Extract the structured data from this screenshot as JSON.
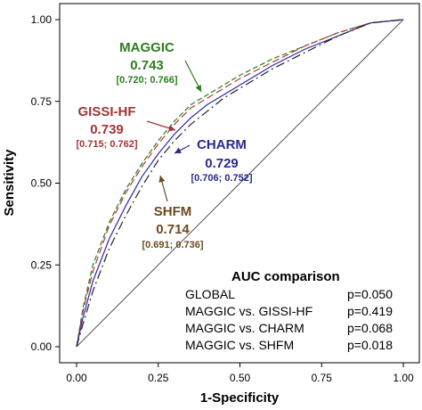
{
  "chart_data": {
    "type": "line",
    "xlabel": "1-Specificity",
    "ylabel": "Sensitivity",
    "xlim": [
      0,
      1
    ],
    "ylim": [
      0,
      1
    ],
    "x_ticks": [
      "0.00",
      "0.25",
      "0.50",
      "0.75",
      "1.00"
    ],
    "y_ticks": [
      "0.00",
      "0.25",
      "0.50",
      "0.75",
      "1.00"
    ],
    "grid": false,
    "reference_line": {
      "from": [
        0,
        0
      ],
      "to": [
        1,
        1
      ],
      "color": "#555555"
    },
    "series": [
      {
        "name": "MAGGIC",
        "color": "#2e7d1e",
        "dash": "6,3",
        "auc": "0.743",
        "ci": "[0.720; 0.766]",
        "x": [
          0,
          0.02,
          0.05,
          0.1,
          0.15,
          0.2,
          0.25,
          0.3,
          0.35,
          0.4,
          0.45,
          0.5,
          0.6,
          0.7,
          0.8,
          0.9,
          1.0
        ],
        "y": [
          0,
          0.12,
          0.25,
          0.38,
          0.48,
          0.56,
          0.63,
          0.69,
          0.74,
          0.77,
          0.8,
          0.83,
          0.88,
          0.92,
          0.96,
          0.99,
          1.0
        ]
      },
      {
        "name": "GISSI-HF",
        "color": "#b03a3a",
        "dash": "8,4",
        "auc": "0.739",
        "ci": "[0.715; 0.762]",
        "x": [
          0,
          0.02,
          0.05,
          0.1,
          0.15,
          0.2,
          0.25,
          0.3,
          0.35,
          0.4,
          0.45,
          0.5,
          0.6,
          0.7,
          0.8,
          0.9,
          1.0
        ],
        "y": [
          0,
          0.11,
          0.23,
          0.37,
          0.47,
          0.55,
          0.62,
          0.68,
          0.73,
          0.76,
          0.79,
          0.82,
          0.87,
          0.92,
          0.96,
          0.99,
          1.0
        ]
      },
      {
        "name": "CHARM",
        "color": "#2a2aa8",
        "dash": "",
        "auc": "0.729",
        "ci": "[0.706; 0.752]",
        "x": [
          0,
          0.02,
          0.05,
          0.1,
          0.15,
          0.2,
          0.25,
          0.3,
          0.35,
          0.4,
          0.45,
          0.5,
          0.6,
          0.7,
          0.8,
          0.9,
          1.0
        ],
        "y": [
          0,
          0.09,
          0.2,
          0.33,
          0.43,
          0.52,
          0.59,
          0.65,
          0.7,
          0.74,
          0.77,
          0.8,
          0.86,
          0.91,
          0.95,
          0.99,
          1.0
        ]
      },
      {
        "name": "SHFM",
        "color": "#222222",
        "dash": "10,4,2,4",
        "auc": "0.714",
        "ci": "[0.691; 0.736]",
        "x": [
          0,
          0.02,
          0.05,
          0.1,
          0.15,
          0.2,
          0.25,
          0.3,
          0.35,
          0.4,
          0.45,
          0.5,
          0.6,
          0.7,
          0.8,
          0.9,
          1.0
        ],
        "y": [
          0,
          0.07,
          0.17,
          0.3,
          0.4,
          0.49,
          0.57,
          0.63,
          0.68,
          0.72,
          0.76,
          0.79,
          0.85,
          0.9,
          0.95,
          0.99,
          1.0
        ]
      }
    ]
  },
  "annotations": {
    "maggic": {
      "name": "MAGGIC",
      "auc": "0.743",
      "ci": "[0.720; 0.766]",
      "color": "#2e7d1e"
    },
    "gissi": {
      "name": "GISSI-HF",
      "auc": "0.739",
      "ci": "[0.715; 0.762]",
      "color": "#a03535"
    },
    "charm": {
      "name": "CHARM",
      "auc": "0.729",
      "ci": "[0.706; 0.752]",
      "color": "#2a2a8a"
    },
    "shfm": {
      "name": "SHFM",
      "auc": "0.714",
      "ci": "[0.691; 0.736]",
      "color": "#6b4a1e"
    }
  },
  "auc_comparison": {
    "title": "AUC comparison",
    "rows": [
      {
        "label": "GLOBAL",
        "p": "p=0.050"
      },
      {
        "label": "MAGGIC vs. GISSI-HF",
        "p": "p=0.419"
      },
      {
        "label": "MAGGIC vs. CHARM",
        "p": "p=0.068"
      },
      {
        "label": "MAGGIC vs. SHFM",
        "p": "p=0.018"
      }
    ]
  }
}
